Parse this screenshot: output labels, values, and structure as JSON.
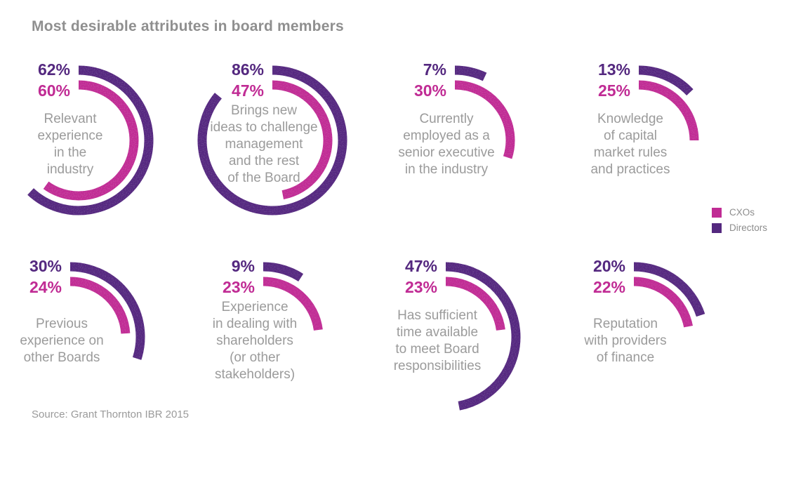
{
  "title": "Most desirable attributes in board members",
  "source": "Source: Grant Thornton IBR 2015",
  "colors": {
    "cxos": "#c02b94",
    "directors": "#54287f",
    "title_gray": "#8f8f8f",
    "label_gray": "#9b9b9b"
  },
  "legend": [
    {
      "label": "CXOs",
      "color_key": "cxos"
    },
    {
      "label": "Directors",
      "color_key": "directors"
    }
  ],
  "chart_data": {
    "type": "radial-bar",
    "unit": "%",
    "start_angle_deg": 0,
    "direction": "clockwise",
    "rings": {
      "outer_series": "Directors",
      "inner_series": "CXOs"
    },
    "categories": [
      "Relevant experience in the industry",
      "Brings new ideas to challenge management and the rest of the Board",
      "Currently employed as a senior executive in the industry",
      "Knowledge of capital market rules and practices",
      "Previous experience on other Boards",
      "Experience in dealing with shareholders (or other stakeholders)",
      "Has sufficient time available to meet Board responsibilities",
      "Reputation with providers of finance"
    ],
    "series": [
      {
        "name": "Directors",
        "color": "#54287f",
        "values": [
          62,
          86,
          7,
          13,
          30,
          9,
          47,
          20
        ]
      },
      {
        "name": "CXOs",
        "color": "#c02b94",
        "values": [
          60,
          47,
          30,
          25,
          24,
          23,
          23,
          22
        ]
      }
    ],
    "items": [
      {
        "directors": 62,
        "cxos": 60,
        "label_lines": [
          "Relevant",
          "experience",
          "in the",
          "industry"
        ]
      },
      {
        "directors": 86,
        "cxos": 47,
        "label_lines": [
          "Brings new",
          "ideas to challenge",
          "management",
          "and the rest",
          "of the Board"
        ]
      },
      {
        "directors": 7,
        "cxos": 30,
        "label_lines": [
          "Currently",
          "employed as a",
          "senior executive",
          "in the industry"
        ]
      },
      {
        "directors": 13,
        "cxos": 25,
        "label_lines": [
          "Knowledge",
          "of capital",
          "market rules",
          "and practices"
        ]
      },
      {
        "directors": 30,
        "cxos": 24,
        "label_lines": [
          "Previous",
          "experience on",
          "other Boards"
        ]
      },
      {
        "directors": 9,
        "cxos": 23,
        "label_lines": [
          "Experience",
          "in dealing with",
          "shareholders",
          "(or other",
          "stakeholders)"
        ]
      },
      {
        "directors": 47,
        "cxos": 23,
        "label_lines": [
          "Has sufficient",
          "time available",
          "to meet Board",
          "responsibilities"
        ]
      },
      {
        "directors": 20,
        "cxos": 22,
        "label_lines": [
          "Reputation",
          "with providers",
          "of finance"
        ]
      }
    ]
  }
}
